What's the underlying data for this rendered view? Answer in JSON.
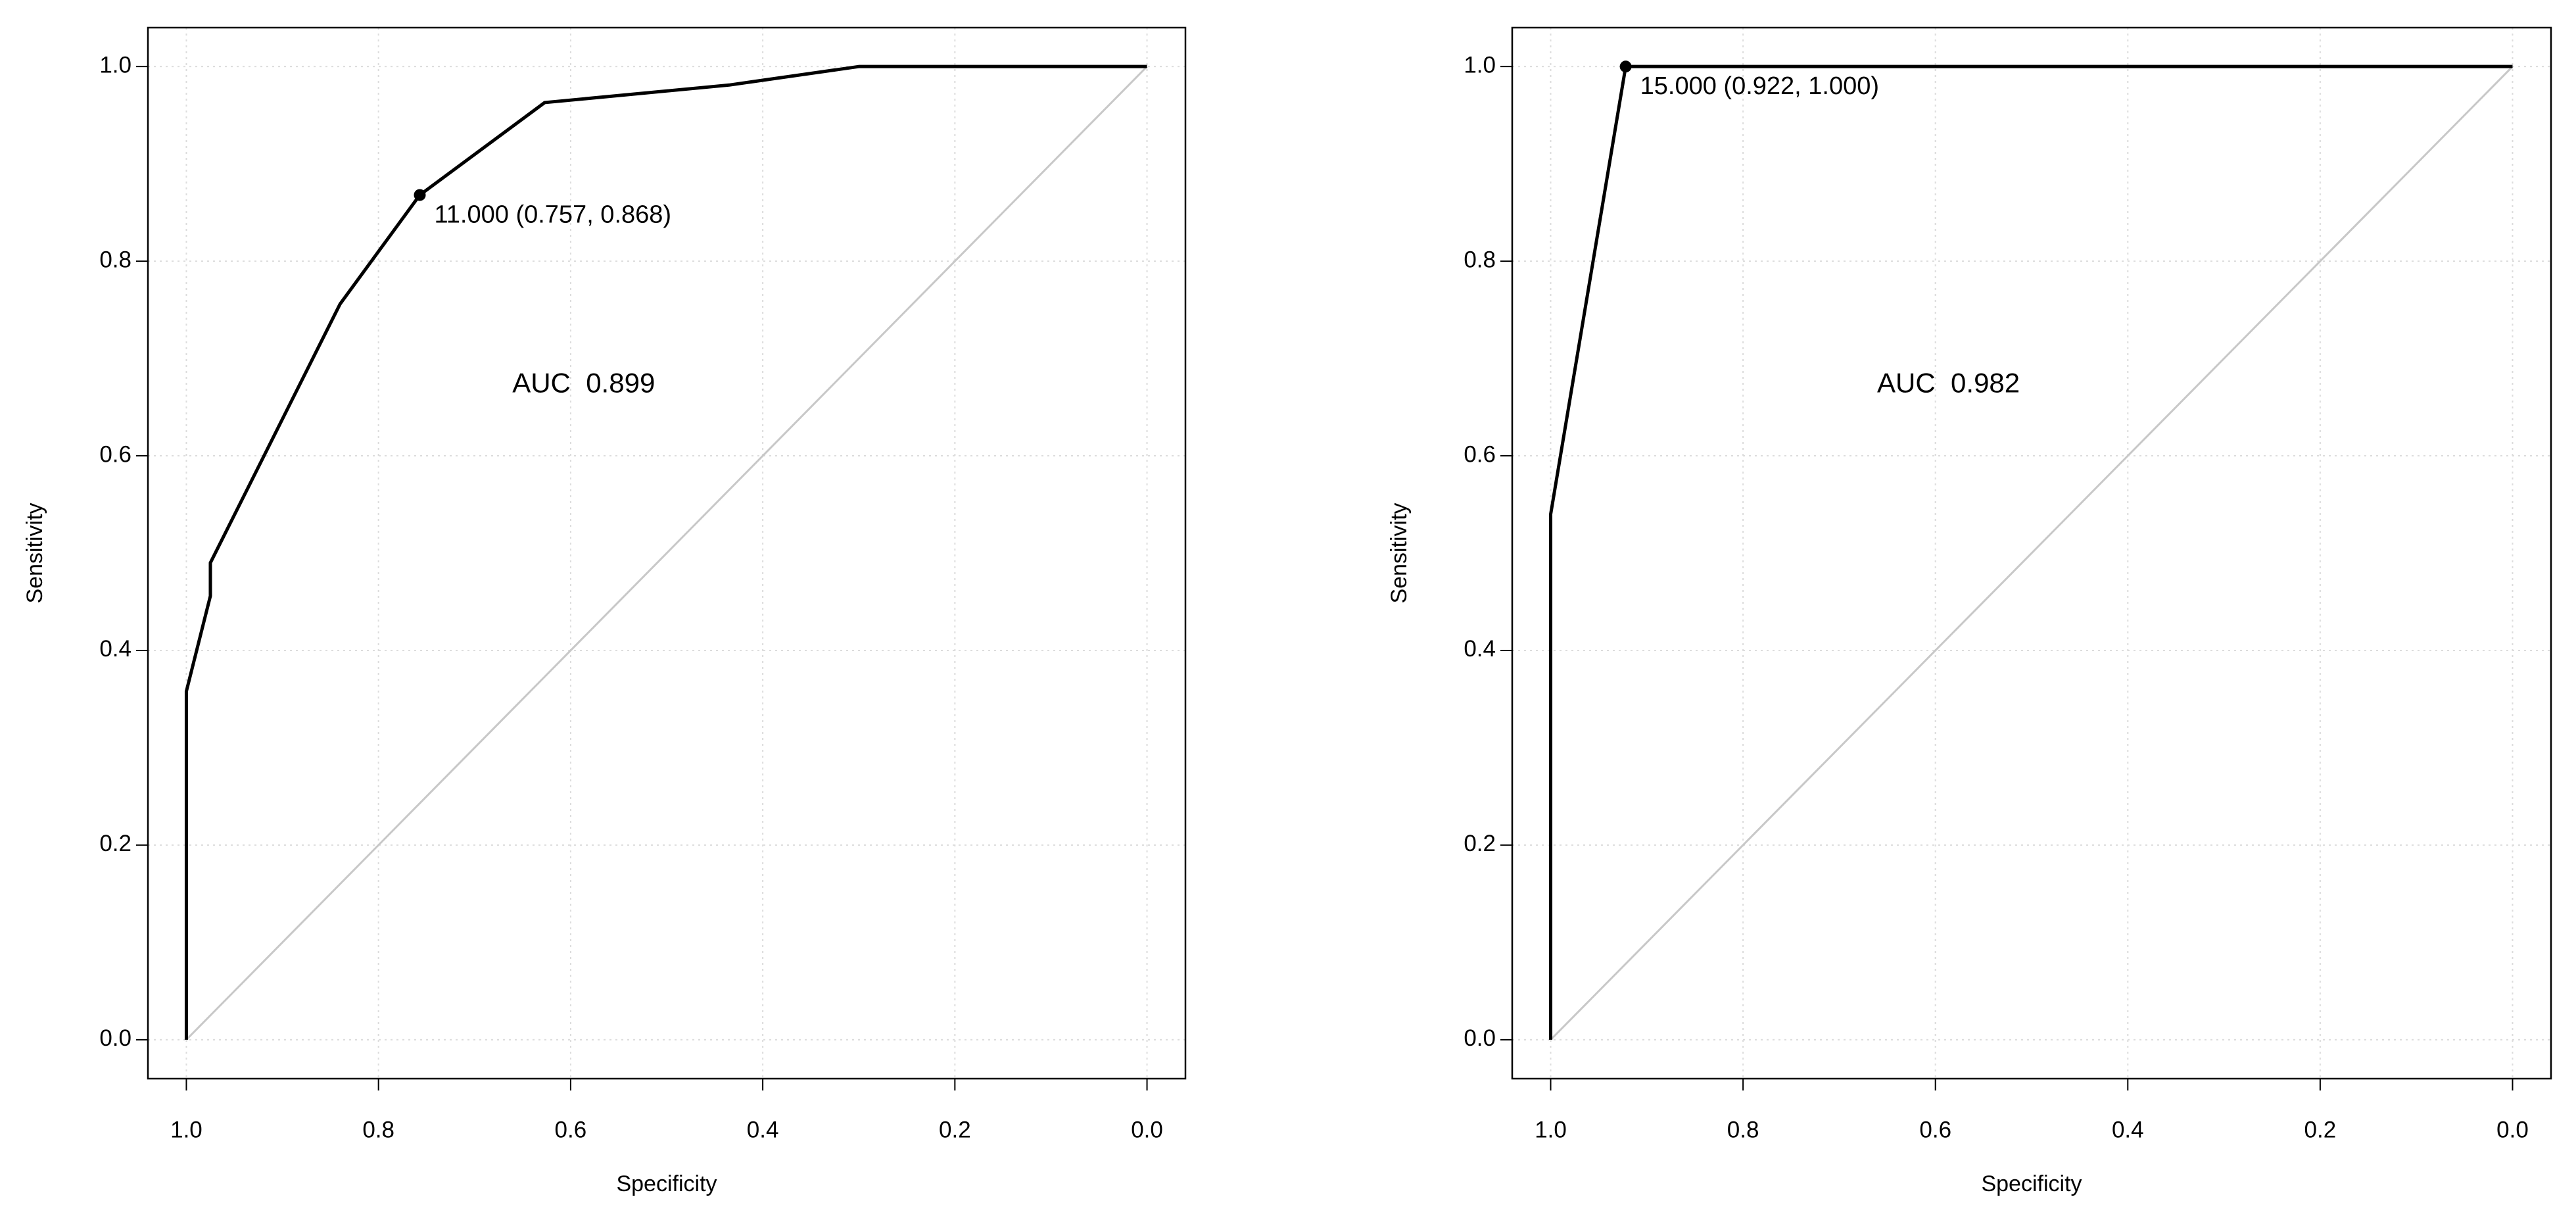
{
  "chart_data": [
    {
      "type": "line",
      "x_label": "Specificity",
      "y_label": "Sensitivity",
      "x": [
        1.0,
        1.0,
        0.975,
        0.975,
        0.84,
        0.757,
        0.627,
        0.435,
        0.3,
        0.0
      ],
      "series": [
        {
          "color": "#000000",
          "values": [
            0.0,
            0.358,
            0.456,
            0.49,
            0.756,
            0.868,
            0.963,
            0.981,
            1.0,
            1.0
          ]
        }
      ],
      "highlight": {
        "x": 0.757,
        "y": 0.868,
        "label": "11.000 (0.757, 0.868)"
      },
      "auc_label": "AUC  0.899",
      "reference_line": {
        "x": [
          1,
          0
        ],
        "y": [
          0,
          1
        ],
        "color": "#c8c8c8"
      },
      "xlim": [
        1.04,
        -0.04
      ],
      "ylim": [
        -0.04,
        1.04
      ],
      "xticks": [
        {
          "value": 1,
          "label": "1.0"
        },
        {
          "value": 0.8,
          "label": "0.8"
        },
        {
          "value": 0.6,
          "label": "0.6"
        },
        {
          "value": 0.4,
          "label": "0.4"
        },
        {
          "value": 0.2,
          "label": "0.2"
        },
        {
          "value": 0,
          "label": "0.0"
        }
      ],
      "yticks": [
        {
          "value": 0,
          "label": "0.0"
        },
        {
          "value": 0.2,
          "label": "0.2"
        },
        {
          "value": 0.4,
          "label": "0.4"
        },
        {
          "value": 0.6,
          "label": "0.6"
        },
        {
          "value": 0.8,
          "label": "0.8"
        },
        {
          "value": 1,
          "label": "1.0"
        }
      ],
      "grid": true
    },
    {
      "type": "line",
      "x_label": "Specificity",
      "y_label": "Sensitivity",
      "x": [
        1.0,
        1.0,
        0.922,
        0.0
      ],
      "series": [
        {
          "color": "#000000",
          "values": [
            0.0,
            0.54,
            1.0,
            1.0
          ]
        }
      ],
      "highlight": {
        "x": 0.922,
        "y": 1.0,
        "label": "15.000 (0.922, 1.000)"
      },
      "auc_label": "AUC  0.982",
      "reference_line": {
        "x": [
          1,
          0
        ],
        "y": [
          0,
          1
        ],
        "color": "#c8c8c8"
      },
      "xlim": [
        1.04,
        -0.04
      ],
      "ylim": [
        -0.04,
        1.04
      ],
      "xticks": [
        {
          "value": 1,
          "label": "1.0"
        },
        {
          "value": 0.8,
          "label": "0.8"
        },
        {
          "value": 0.6,
          "label": "0.6"
        },
        {
          "value": 0.4,
          "label": "0.4"
        },
        {
          "value": 0.2,
          "label": "0.2"
        },
        {
          "value": 0,
          "label": "0.0"
        }
      ],
      "yticks": [
        {
          "value": 0,
          "label": "0.0"
        },
        {
          "value": 0.2,
          "label": "0.2"
        },
        {
          "value": 0.4,
          "label": "0.4"
        },
        {
          "value": 0.6,
          "label": "0.6"
        },
        {
          "value": 0.8,
          "label": "0.8"
        },
        {
          "value": 1,
          "label": "1.0"
        }
      ],
      "grid": true
    }
  ]
}
